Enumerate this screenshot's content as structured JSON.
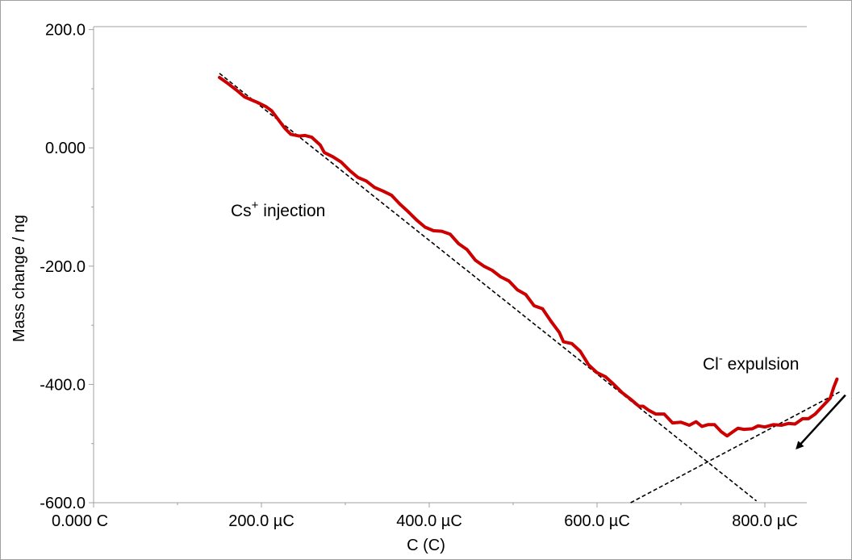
{
  "chart_data": {
    "type": "line",
    "title": "",
    "xlabel": "C (C)",
    "ylabel": "Mass change / ng",
    "xlim": [
      0,
      850
    ],
    "ylim": [
      -600,
      205
    ],
    "grid": false,
    "x_ticks": [
      {
        "value": 0,
        "label": "0.000 C"
      },
      {
        "value": 200,
        "label": "200.0 µC"
      },
      {
        "value": 400,
        "label": "400.0 µC"
      },
      {
        "value": 600,
        "label": "600.0 µC"
      },
      {
        "value": 800,
        "label": "800.0 µC"
      }
    ],
    "y_ticks": [
      {
        "value": 200,
        "label": "200.0"
      },
      {
        "value": 0,
        "label": "0.000"
      },
      {
        "value": -200,
        "label": "-200.0"
      },
      {
        "value": -400,
        "label": "-400.0"
      },
      {
        "value": -600,
        "label": "-600.0"
      }
    ],
    "series": [
      {
        "color": "#cc0000",
        "points": [
          [
            150,
            119
          ],
          [
            160,
            109
          ],
          [
            170,
            98
          ],
          [
            180,
            86
          ],
          [
            190,
            80
          ],
          [
            195,
            77
          ],
          [
            205,
            70
          ],
          [
            212,
            63
          ],
          [
            220,
            48
          ],
          [
            228,
            33
          ],
          [
            235,
            23
          ],
          [
            245,
            20
          ],
          [
            252,
            21
          ],
          [
            260,
            18
          ],
          [
            270,
            5
          ],
          [
            275,
            -8
          ],
          [
            285,
            -15
          ],
          [
            295,
            -24
          ],
          [
            305,
            -38
          ],
          [
            315,
            -50
          ],
          [
            325,
            -56
          ],
          [
            335,
            -67
          ],
          [
            345,
            -73
          ],
          [
            355,
            -80
          ],
          [
            365,
            -95
          ],
          [
            375,
            -108
          ],
          [
            385,
            -122
          ],
          [
            395,
            -134
          ],
          [
            405,
            -140
          ],
          [
            415,
            -141
          ],
          [
            425,
            -146
          ],
          [
            435,
            -162
          ],
          [
            445,
            -172
          ],
          [
            455,
            -190
          ],
          [
            465,
            -200
          ],
          [
            475,
            -207
          ],
          [
            485,
            -218
          ],
          [
            495,
            -225
          ],
          [
            505,
            -240
          ],
          [
            515,
            -248
          ],
          [
            525,
            -267
          ],
          [
            535,
            -272
          ],
          [
            545,
            -293
          ],
          [
            555,
            -312
          ],
          [
            560,
            -328
          ],
          [
            570,
            -331
          ],
          [
            580,
            -344
          ],
          [
            590,
            -367
          ],
          [
            600,
            -380
          ],
          [
            610,
            -387
          ],
          [
            620,
            -400
          ],
          [
            630,
            -414
          ],
          [
            640,
            -425
          ],
          [
            650,
            -437
          ],
          [
            655,
            -437
          ],
          [
            662,
            -444
          ],
          [
            670,
            -450
          ],
          [
            680,
            -450
          ],
          [
            690,
            -465
          ],
          [
            700,
            -464
          ],
          [
            710,
            -469
          ],
          [
            718,
            -463
          ],
          [
            725,
            -471
          ],
          [
            732,
            -468
          ],
          [
            740,
            -468
          ],
          [
            748,
            -480
          ],
          [
            755,
            -487
          ],
          [
            762,
            -480
          ],
          [
            768,
            -474
          ],
          [
            775,
            -476
          ],
          [
            785,
            -475
          ],
          [
            792,
            -470
          ],
          [
            800,
            -472
          ],
          [
            810,
            -468
          ],
          [
            820,
            -469
          ],
          [
            828,
            -466
          ],
          [
            836,
            -467
          ],
          [
            845,
            -458
          ],
          [
            852,
            -458
          ],
          [
            860,
            -450
          ],
          [
            866,
            -441
          ],
          [
            872,
            -432
          ],
          [
            878,
            -423
          ],
          [
            882,
            -405
          ],
          [
            886,
            -391
          ]
        ]
      }
    ],
    "fit_lines": [
      {
        "style": "dashed",
        "color": "#000000",
        "from": [
          150,
          126
        ],
        "to": [
          790,
          -597
        ]
      },
      {
        "style": "dashed",
        "color": "#000000",
        "from": [
          640,
          -600
        ],
        "to": [
          890,
          -412
        ]
      }
    ],
    "annotations": [
      {
        "text_main": "Cs",
        "text_sup": "+",
        "text_rest": " injection"
      },
      {
        "text_main": "Cl",
        "text_sup": "-",
        "text_rest": " expulsion"
      }
    ],
    "arrow": {
      "from": [
        896,
        -418
      ],
      "to": [
        838,
        -508
      ],
      "color": "#000000"
    }
  }
}
